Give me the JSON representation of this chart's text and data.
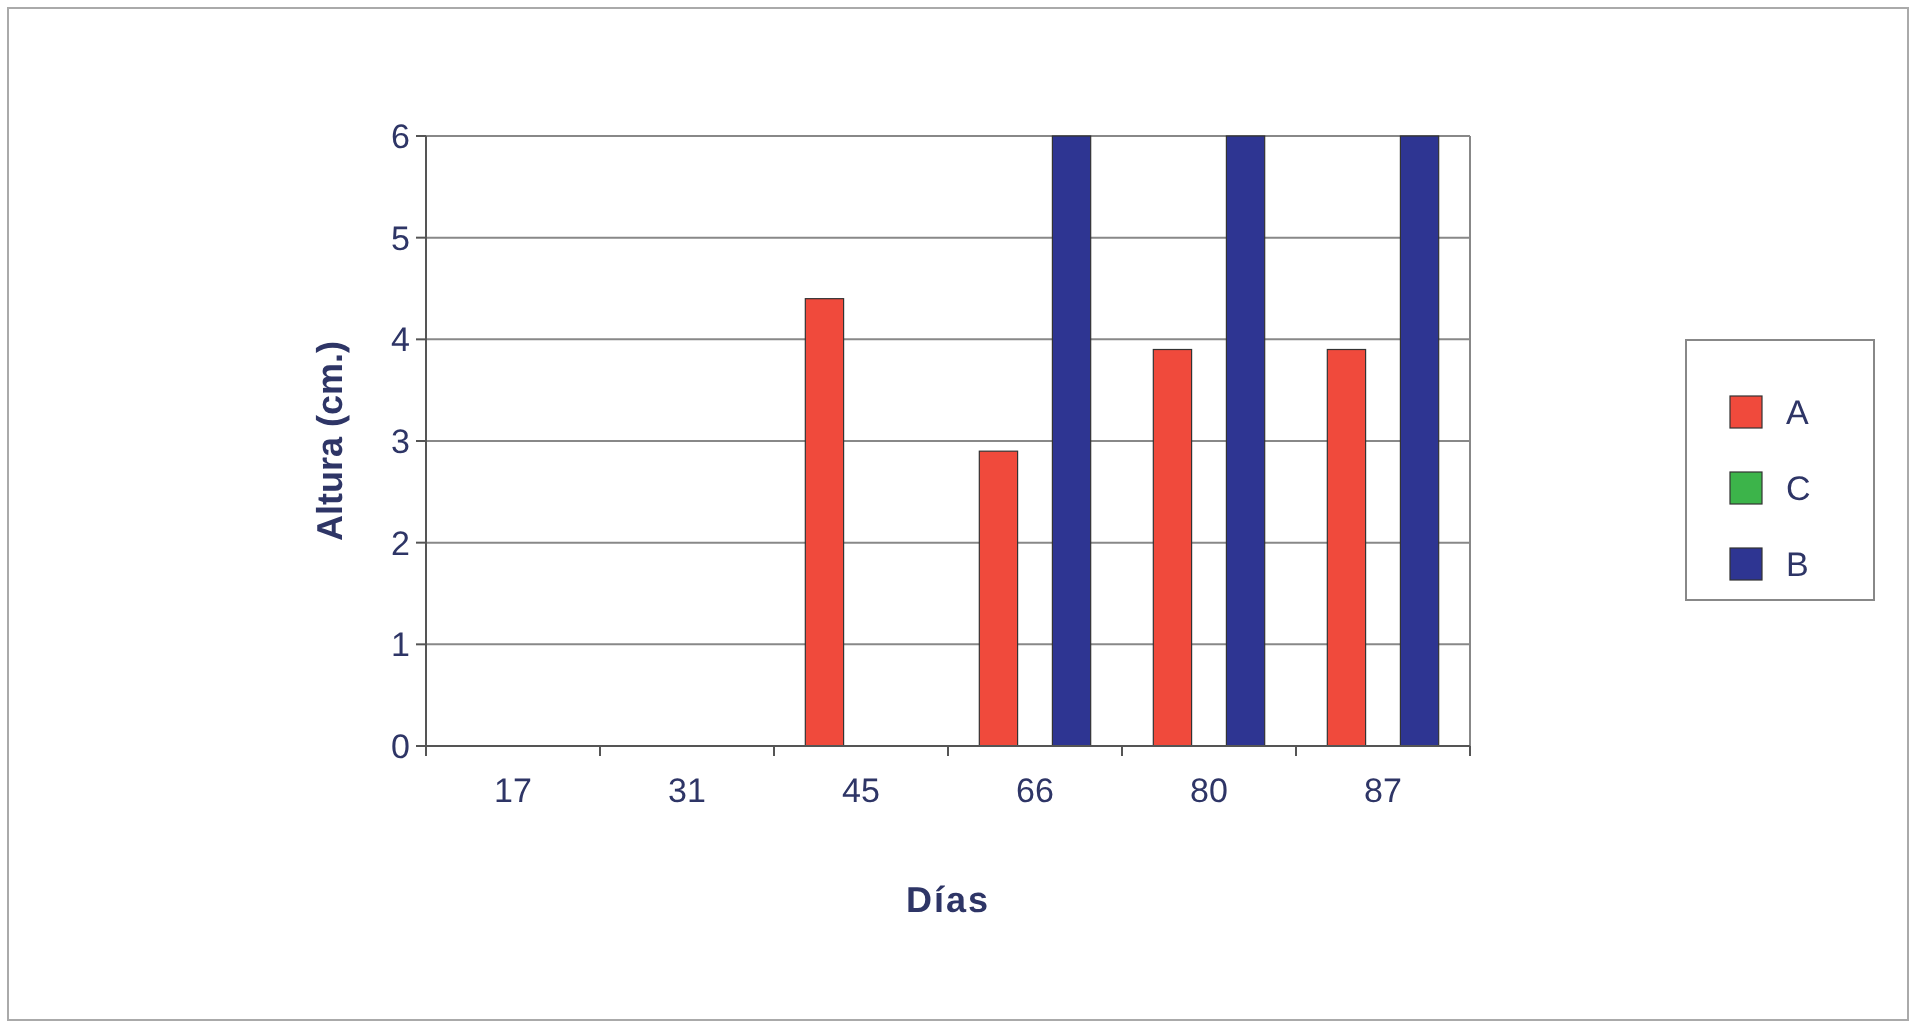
{
  "chart_data": {
    "type": "bar",
    "xlabel": "Días",
    "ylabel": "Altura (cm.)",
    "categories": [
      "17",
      "31",
      "45",
      "66",
      "80",
      "87"
    ],
    "series": [
      {
        "name": "A",
        "color": "#f04a3c",
        "values": [
          0,
          0,
          4.4,
          2.9,
          3.9,
          3.9
        ]
      },
      {
        "name": "C",
        "color": "#3cb44a",
        "values": [
          0,
          0,
          0,
          0,
          0,
          0
        ]
      },
      {
        "name": "B",
        "color": "#2e3592",
        "values": [
          0,
          0,
          0,
          6,
          6,
          6
        ]
      }
    ],
    "ylim": [
      0,
      6
    ],
    "yticks": [
      0,
      1,
      2,
      3,
      4,
      5,
      6
    ],
    "grid": "y",
    "legend": "right"
  }
}
